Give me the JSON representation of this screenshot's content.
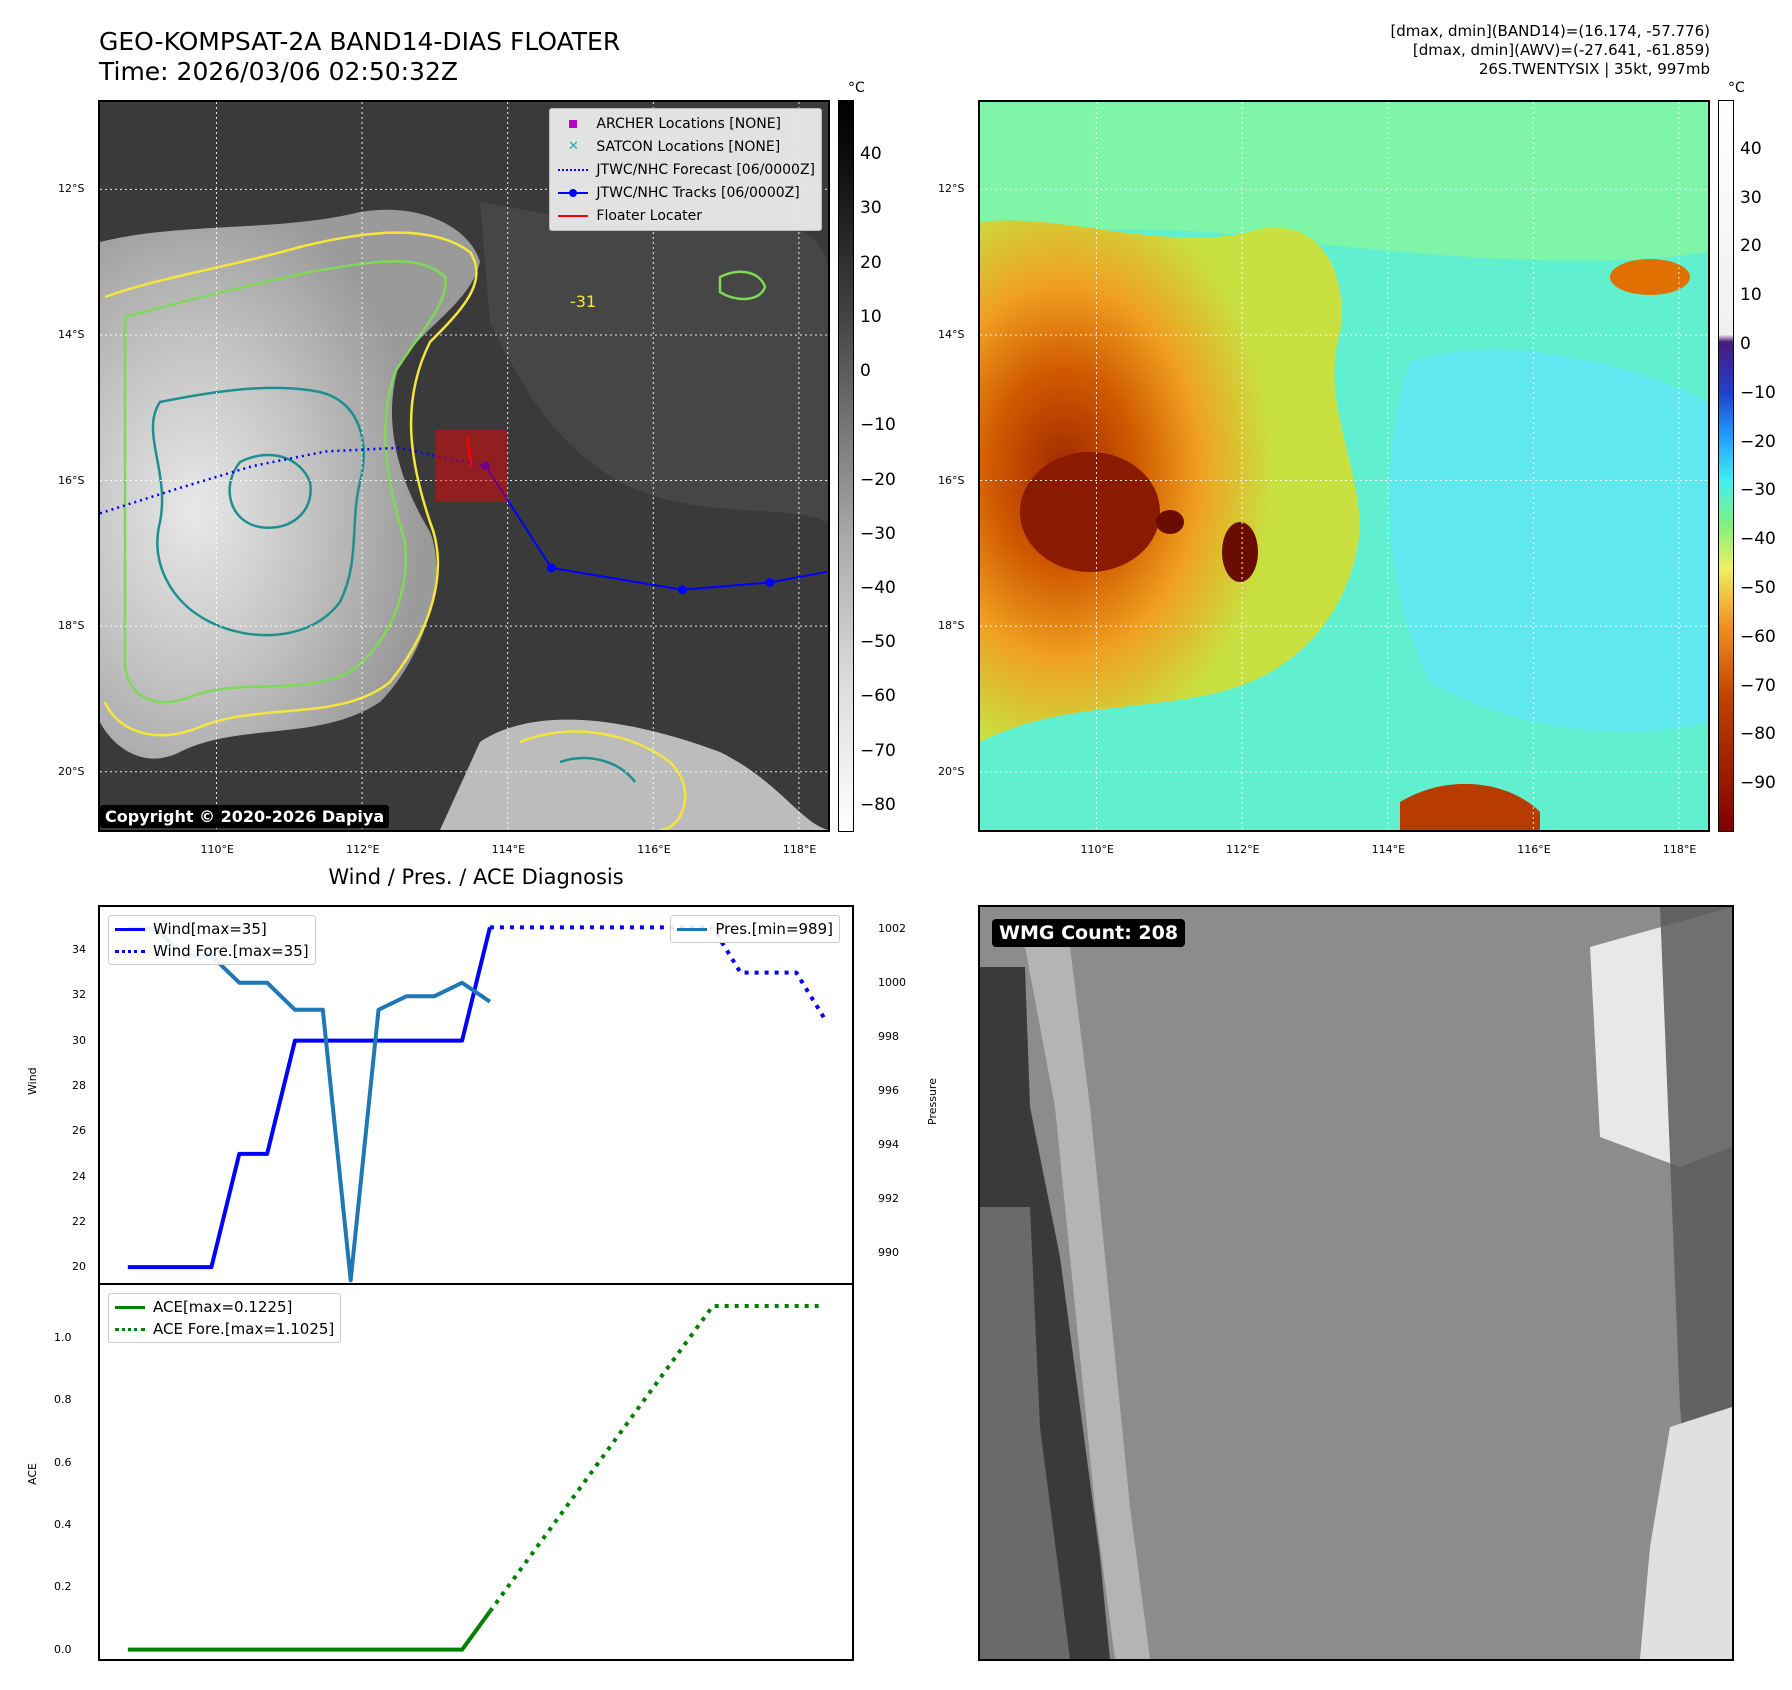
{
  "header": {
    "title_line1": "GEO-KOMPSAT-2A BAND14-DIAS FLOATER",
    "title_line2": "Time: 2026/03/06 02:50:32Z",
    "info_line1": "[dmax, dmin](BAND14)=(16.174, -57.776)",
    "info_line2": "[dmax, dmin](AWV)=(-27.641, -61.859)",
    "info_line3": "26S.TWENTYSIX | 35kt, 997mb"
  },
  "map_axes": {
    "lat_labels": [
      "12°S",
      "14°S",
      "16°S",
      "18°S",
      "20°S"
    ],
    "lon_labels": [
      "110°E",
      "112°E",
      "114°E",
      "116°E",
      "118°E"
    ],
    "lat_values": [
      -12,
      -14,
      -16,
      -18,
      -20
    ],
    "lon_values": [
      110,
      112,
      114,
      116,
      118
    ],
    "lon_range": [
      108.4,
      118.4
    ],
    "lat_range": [
      -10.8,
      -20.8
    ]
  },
  "ir_map": {
    "copyright": "Copyright © 2020-2026 Dapiya",
    "contour_label": "-31",
    "legend": [
      {
        "label": "ARCHER Locations [NONE]",
        "color": "#c000c0",
        "marker": "square"
      },
      {
        "label": "SATCON Locations [NONE]",
        "color": "#20b0b0",
        "marker": "x"
      },
      {
        "label": "JTWC/NHC Forecast [06/0000Z]",
        "color": "#0000ff",
        "marker": "dotted"
      },
      {
        "label": "JTWC/NHC Tracks [06/0000Z]",
        "color": "#0000ff",
        "marker": "line-dot"
      },
      {
        "label": "Floater Locater",
        "color": "#ff0000",
        "marker": "line"
      }
    ],
    "track_points": [
      {
        "lon": 113.7,
        "lat": -15.8
      },
      {
        "lon": 114.6,
        "lat": -17.2
      },
      {
        "lon": 116.4,
        "lat": -17.5
      },
      {
        "lon": 117.6,
        "lat": -17.4
      },
      {
        "lon": 118.4,
        "lat": -17.25
      }
    ],
    "forecast_points": [
      {
        "lon": 108.4,
        "lat": -16.45
      },
      {
        "lon": 109.5,
        "lat": -16.1
      },
      {
        "lon": 110.5,
        "lat": -15.8
      },
      {
        "lon": 111.5,
        "lat": -15.6
      },
      {
        "lon": 112.5,
        "lat": -15.55
      },
      {
        "lon": 113.2,
        "lat": -15.7
      },
      {
        "lon": 113.7,
        "lat": -15.8
      }
    ],
    "floater_center": {
      "lon": 113.5,
      "lat": -15.8
    }
  },
  "colorbar_ir": {
    "unit": "°C",
    "ticks": [
      "40",
      "30",
      "20",
      "10",
      "0",
      "−10",
      "−20",
      "−30",
      "−40",
      "−50",
      "−60",
      "−70",
      "−80"
    ],
    "values": [
      40,
      30,
      20,
      10,
      0,
      -10,
      -20,
      -30,
      -40,
      -50,
      -60,
      -70,
      -80
    ],
    "range": [
      50,
      -85
    ]
  },
  "colorbar_enh": {
    "unit": "°C",
    "ticks": [
      "40",
      "30",
      "20",
      "10",
      "0",
      "−10",
      "−20",
      "−30",
      "−40",
      "−50",
      "−60",
      "−70",
      "−80",
      "−90"
    ],
    "values": [
      40,
      30,
      20,
      10,
      0,
      -10,
      -20,
      -30,
      -40,
      -50,
      -60,
      -70,
      -80,
      -90
    ],
    "range": [
      50,
      -100
    ]
  },
  "chart_data": [
    {
      "type": "line",
      "title": "Wind / Pres. / ACE Diagnosis",
      "ylabel": "Wind",
      "ylabel_right": "Pressure",
      "ylim": [
        19.3,
        35.9
      ],
      "ylim_right": [
        988.9,
        1002.8
      ],
      "xlim": [
        0,
        27
      ],
      "yticks": [
        20,
        22,
        24,
        26,
        28,
        30,
        32,
        34
      ],
      "yticks_right": [
        990,
        992,
        994,
        996,
        998,
        1000,
        1002
      ],
      "series": [
        {
          "name": "Wind[max=35]",
          "color": "#0000ff",
          "style": "solid",
          "x": [
            1,
            2,
            3,
            4,
            5,
            6,
            7,
            8,
            9,
            10,
            11,
            12,
            13,
            14
          ],
          "values": [
            20,
            20,
            20,
            20,
            25,
            25,
            30,
            30,
            30,
            30,
            30,
            30,
            30,
            35
          ]
        },
        {
          "name": "Wind Fore.[max=35]",
          "color": "#0000ff",
          "style": "dotted",
          "x": [
            14,
            15,
            16,
            17,
            18,
            19,
            20,
            21,
            22,
            23,
            24,
            25,
            26
          ],
          "values": [
            35,
            35,
            35,
            35,
            35,
            35,
            35,
            35,
            35,
            33,
            33,
            33,
            31
          ]
        },
        {
          "name": "Pres.[min=989]",
          "color": "#1f77b4",
          "style": "solid",
          "axis": "right",
          "x": [
            1,
            2,
            3,
            4,
            5,
            6,
            7,
            8,
            9,
            10,
            11,
            12,
            13,
            14
          ],
          "values": [
            1002,
            1002,
            1001,
            1001,
            1000,
            1000,
            999,
            999,
            989,
            999,
            999.5,
            999.5,
            1000,
            999.3
          ]
        }
      ]
    },
    {
      "type": "line",
      "ylabel": "ACE",
      "ylim": [
        -0.03,
        1.17
      ],
      "xlim": [
        0,
        27
      ],
      "yticks": [
        0.0,
        0.2,
        0.4,
        0.6,
        0.8,
        1.0
      ],
      "ytick_labels": [
        "0.0",
        "0.2",
        "0.4",
        "0.6",
        "0.8",
        "1.0"
      ],
      "series": [
        {
          "name": "ACE[max=0.1225]",
          "color": "#008000",
          "style": "solid",
          "x": [
            1,
            13,
            14
          ],
          "values": [
            0,
            0,
            0.1225
          ]
        },
        {
          "name": "ACE Fore.[max=1.1025]",
          "color": "#008000",
          "style": "dotted",
          "x": [
            14,
            22,
            26
          ],
          "values": [
            0.1225,
            1.1025,
            1.1025
          ]
        }
      ]
    }
  ],
  "wmg": {
    "label": "WMG Count: 208"
  }
}
